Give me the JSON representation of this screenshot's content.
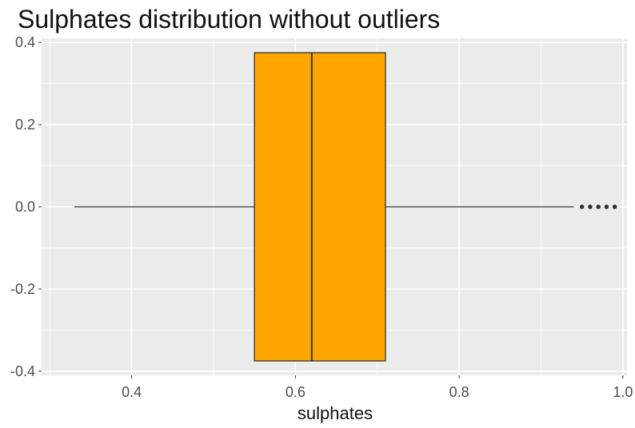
{
  "chart_data": {
    "type": "box",
    "title": "Sulphates distribution without outliers",
    "xlabel": "sulphates",
    "ylabel": "",
    "xlim": [
      0.29,
      1.005
    ],
    "ylim": [
      -0.41,
      0.41
    ],
    "x_ticks": [
      0.4,
      0.6,
      0.8,
      1.0
    ],
    "x_tick_labels": [
      "0.4",
      "0.6",
      "0.8",
      "1.0"
    ],
    "y_ticks": [
      0.4,
      0.2,
      0.0,
      -0.2,
      -0.4
    ],
    "y_tick_labels": [
      "0.4",
      "0.2",
      "0.0",
      "-0.2",
      "-0.4"
    ],
    "grid": true,
    "box": {
      "whisker_low": 0.33,
      "q1": 0.55,
      "median": 0.62,
      "q3": 0.71,
      "whisker_high": 0.94,
      "box_y_range": [
        -0.375,
        0.375
      ]
    },
    "outliers": [
      0.95,
      0.96,
      0.97,
      0.98,
      0.99
    ],
    "colors": {
      "box_fill": "#FFA500",
      "box_stroke": "#333333",
      "panel_background": "#EBEBEB",
      "grid": "#FFFFFF",
      "outlier": "#333333"
    }
  }
}
